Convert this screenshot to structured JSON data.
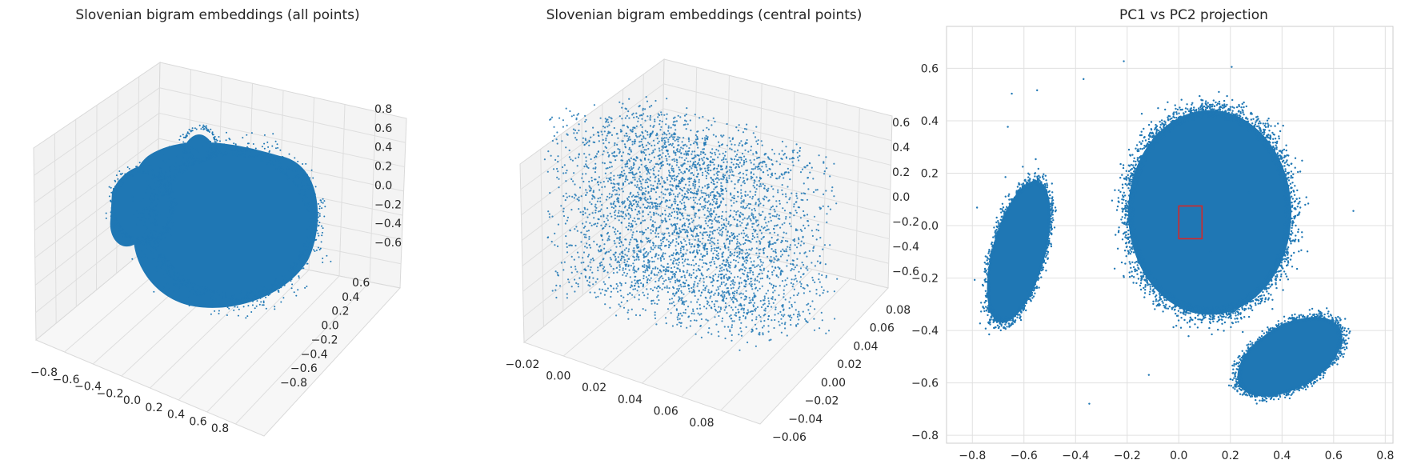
{
  "chart_data": [
    {
      "type": "scatter",
      "subtype": "3d",
      "title": "Slovenian bigram embeddings (all points)",
      "marker_color": "#1f77b4",
      "grid": true,
      "xticks": [
        "−0.8",
        "−0.6",
        "−0.4",
        "−0.2",
        "0.0",
        "0.2",
        "0.4",
        "0.6",
        "0.8"
      ],
      "yticks": [
        "0.6",
        "0.4",
        "0.2",
        "0.0",
        "−0.2",
        "−0.4",
        "−0.6",
        "−0.8"
      ],
      "zticks": [
        "0.8",
        "0.6",
        "0.4",
        "0.2",
        "0.0",
        "−0.2",
        "−0.4",
        "−0.6"
      ],
      "xlim": [
        -0.9,
        0.9
      ],
      "ylim": [
        -0.9,
        0.7
      ],
      "zlim": [
        -0.7,
        0.8
      ],
      "clusters": [
        {
          "name": "",
          "center": [
            -0.55,
            0.1,
            0.25
          ],
          "spread": [
            0.1,
            0.15,
            0.1
          ],
          "approx_points": 15000
        },
        {
          "name": "",
          "center": [
            0.15,
            -0.05,
            0.0
          ],
          "spread": [
            0.3,
            0.3,
            0.25
          ],
          "approx_points": 200000
        }
      ]
    },
    {
      "type": "scatter",
      "subtype": "3d",
      "title": "Slovenian bigram embeddings (central points)",
      "marker_color": "#1f77b4",
      "grid": true,
      "xticks": [
        "−0.02",
        "0.00",
        "0.02",
        "0.04",
        "0.06",
        "0.08"
      ],
      "yticks": [
        "0.08",
        "0.06",
        "0.04",
        "0.02",
        "0.00",
        "−0.02",
        "−0.04",
        "−0.06"
      ],
      "zticks": [
        "0.6",
        "0.4",
        "0.2",
        "0.0",
        "−0.2",
        "−0.4",
        "−0.6"
      ],
      "xlim": [
        -0.02,
        0.1
      ],
      "ylim": [
        -0.06,
        0.08
      ],
      "zlim": [
        -0.7,
        0.6
      ],
      "note_points": "uniform cloud of ~5000 points inside the x/y box of the red rectangle"
    },
    {
      "type": "scatter",
      "title": "PC1 vs PC2 projection",
      "marker_color": "#1f77b4",
      "grid": true,
      "xlim": [
        -0.9,
        0.83
      ],
      "ylim": [
        -0.83,
        0.76
      ],
      "xticks": [
        -0.8,
        -0.6,
        -0.4,
        -0.2,
        0.0,
        0.2,
        0.4,
        0.6,
        0.8
      ],
      "yticks": [
        0.6,
        0.4,
        0.2,
        0.0,
        -0.2,
        -0.4,
        -0.6,
        -0.8
      ],
      "xtick_labels": [
        "−0.8",
        "−0.6",
        "−0.4",
        "−0.2",
        "0.0",
        "0.2",
        "0.4",
        "0.6",
        "0.8"
      ],
      "ytick_labels": [
        "0.6",
        "0.4",
        "0.2",
        "0.0",
        "−0.2",
        "−0.4",
        "−0.6",
        "−0.8"
      ],
      "clusters": [
        {
          "name": "",
          "center": [
            -0.62,
            -0.1
          ],
          "radius": [
            0.11,
            0.3
          ],
          "rotation_deg": -15,
          "approx_points": 20000
        },
        {
          "name": "",
          "center": [
            0.12,
            0.05
          ],
          "radius": [
            0.34,
            0.42
          ],
          "rotation_deg": 0,
          "approx_points": 250000
        },
        {
          "name": "",
          "center": [
            0.43,
            -0.5
          ],
          "radius": [
            0.24,
            0.13
          ],
          "rotation_deg": 30,
          "approx_points": 30000
        }
      ],
      "highlight_box": {
        "x": [
          0.0,
          0.09
        ],
        "y": [
          -0.05,
          0.075
        ],
        "color": "#d62728"
      }
    }
  ]
}
